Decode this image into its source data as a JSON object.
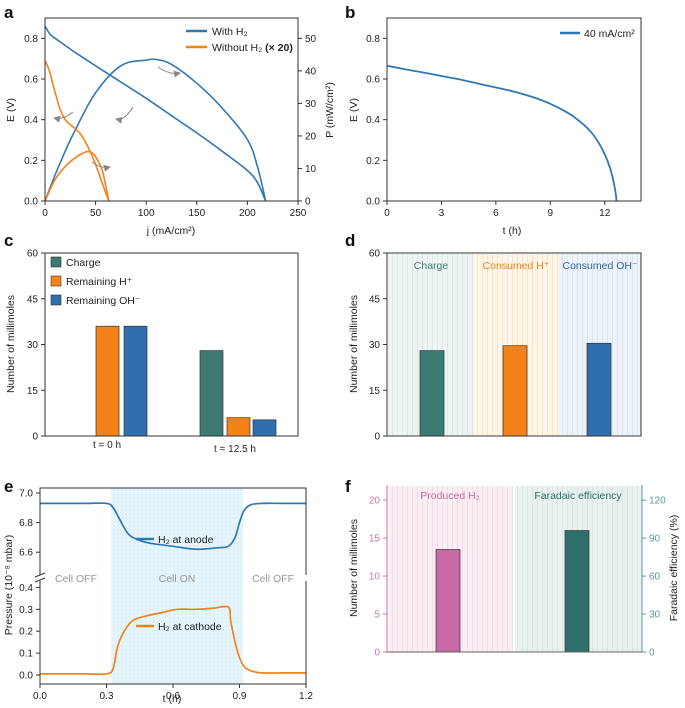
{
  "colors": {
    "blue": "#2f78b4",
    "orange": "#f58218",
    "teal": "#3c7a72",
    "blue_bar": "#2f6fae",
    "pink": "#c76aa3",
    "dark_teal": "#2f6f6a",
    "axis": "#333333",
    "pink_axis": "#c77aa8",
    "teal_axis": "#5a9a9a",
    "light_blue_band": "#e3f4fb",
    "arrow_gray": "#888888"
  },
  "chart_data": [
    {
      "panel": "a",
      "type": "line",
      "xlabel": "j (mA/cm²)",
      "ylabel_left": "E (V)",
      "ylabel_right": "P (mW/cm²)",
      "xlim": [
        0,
        250
      ],
      "ylim_left": [
        0,
        0.9
      ],
      "ylim_right": [
        0,
        56.25
      ],
      "xticks": [
        "0",
        "50",
        "100",
        "150",
        "200",
        "250"
      ],
      "yticks_left": [
        "0.0",
        "0.2",
        "0.4",
        "0.6",
        "0.8"
      ],
      "yticks_right": [
        "0",
        "10",
        "20",
        "30",
        "40",
        "50"
      ],
      "legend": [
        {
          "label": "With H₂",
          "color": "blue"
        },
        {
          "label": "Without H₂",
          "suffix": "(× 20)",
          "color": "orange"
        }
      ],
      "series": [
        {
          "name": "With H₂ – E",
          "axis": "left",
          "color": "blue",
          "x": [
            0,
            5,
            10,
            20,
            30,
            50,
            75,
            100,
            125,
            150,
            175,
            200,
            210,
            218
          ],
          "y": [
            0.86,
            0.82,
            0.8,
            0.765,
            0.73,
            0.665,
            0.585,
            0.505,
            0.42,
            0.335,
            0.245,
            0.15,
            0.09,
            0.0
          ]
        },
        {
          "name": "With H₂ – P",
          "axis": "right",
          "color": "blue",
          "x": [
            0,
            10,
            20,
            30,
            50,
            75,
            100,
            110,
            125,
            150,
            175,
            200,
            210,
            218
          ],
          "y": [
            0,
            8.0,
            15.3,
            21.9,
            33.3,
            41.6,
            43.3,
            43.5,
            42.0,
            36.2,
            28.6,
            18.9,
            10.5,
            0
          ]
        },
        {
          "name": "Without H₂ – E",
          "axis": "left",
          "color": "orange",
          "x": [
            0,
            2,
            5,
            8,
            12,
            15,
            20,
            25,
            30,
            35,
            40,
            45,
            50,
            55,
            60,
            63
          ],
          "y": [
            0.69,
            0.67,
            0.63,
            0.57,
            0.5,
            0.45,
            0.4,
            0.375,
            0.355,
            0.33,
            0.29,
            0.24,
            0.18,
            0.11,
            0.04,
            0.0
          ]
        },
        {
          "name": "Without H₂ – P",
          "axis": "right",
          "color": "orange",
          "x": [
            0,
            10,
            20,
            30,
            38,
            42,
            47,
            52,
            57,
            63
          ],
          "y": [
            0,
            6.6,
            10.6,
            13.3,
            14.8,
            15.2,
            14.7,
            12.6,
            9.0,
            0
          ]
        }
      ],
      "annotations": [
        "arrow from max P (With H₂) to right axis",
        "arrow from With H₂ E curve to left axis",
        "arrow from Without H₂ E curve to left axis",
        "arrow from Without H₂ P curve to right axis"
      ]
    },
    {
      "panel": "b",
      "type": "line",
      "xlabel": "t (h)",
      "ylabel": "E (V)",
      "xlim": [
        0,
        14
      ],
      "ylim": [
        0,
        0.9
      ],
      "xticks": [
        "0",
        "3",
        "6",
        "9",
        "12"
      ],
      "yticks": [
        "0.0",
        "0.2",
        "0.4",
        "0.6",
        "0.8"
      ],
      "legend": [
        {
          "label": "40 mA/cm²",
          "color": "blue"
        }
      ],
      "series": [
        {
          "name": "40 mA/cm²",
          "color": "blue",
          "x": [
            0,
            1,
            2,
            3,
            4,
            5,
            6,
            7,
            8,
            9,
            10,
            10.5,
            11,
            11.5,
            12,
            12.3,
            12.5,
            12.6,
            12.65
          ],
          "y": [
            0.665,
            0.648,
            0.632,
            0.615,
            0.598,
            0.578,
            0.558,
            0.538,
            0.512,
            0.478,
            0.432,
            0.4,
            0.362,
            0.31,
            0.23,
            0.16,
            0.09,
            0.04,
            0.0
          ]
        }
      ]
    },
    {
      "panel": "c",
      "type": "bar",
      "ylabel": "Number of millimoles",
      "ylim": [
        0,
        60
      ],
      "yticks": [
        "0",
        "15",
        "30",
        "45",
        "60"
      ],
      "categories": [
        "t = 0 h",
        "t = 12.5 h"
      ],
      "series": [
        {
          "name": "Charge",
          "color": "teal",
          "values": [
            0,
            28
          ]
        },
        {
          "name": "Remaining H⁺",
          "color": "orange",
          "values": [
            36,
            6
          ]
        },
        {
          "name": "Remaining OH⁻",
          "color": "blue_bar",
          "values": [
            36,
            5.3
          ]
        }
      ]
    },
    {
      "panel": "d",
      "type": "bar",
      "ylabel": "Number of millimoles",
      "ylim": [
        0,
        60
      ],
      "yticks": [
        "0",
        "15",
        "30",
        "45",
        "60"
      ],
      "categories": [
        "Charge",
        "Consumed H⁺",
        "Consumed OH⁻"
      ],
      "values": [
        28,
        29.6,
        30.4
      ],
      "bar_colors": [
        "teal",
        "orange",
        "blue_bar"
      ],
      "header_colors": [
        "#3d7f7a",
        "#e9861f",
        "#31679d"
      ]
    },
    {
      "panel": "e",
      "type": "line",
      "xlabel": "t (h)",
      "ylabel": "Pressure (10⁻⁸ mbar)",
      "xlim": [
        0,
        1.2
      ],
      "xticks": [
        "0.0",
        "0.3",
        "0.6",
        "0.9",
        "1.2"
      ],
      "ylim_upper": [
        6.5,
        7.0
      ],
      "yticks_upper": [
        "6.6",
        "6.8",
        "7.0"
      ],
      "ylim_lower": [
        -0.05,
        0.42
      ],
      "yticks_lower": [
        "0.0",
        "0.1",
        "0.2",
        "0.3",
        "0.4"
      ],
      "regions": [
        {
          "label": "Cell OFF",
          "from": 0,
          "to": 0.32
        },
        {
          "label": "Cell ON",
          "from": 0.32,
          "to": 0.92
        },
        {
          "label": "Cell OFF",
          "from": 0.92,
          "to": 1.2
        }
      ],
      "series": [
        {
          "name": "H₂ at anode",
          "color": "blue",
          "x": [
            0,
            0.1,
            0.2,
            0.3,
            0.33,
            0.36,
            0.4,
            0.45,
            0.5,
            0.6,
            0.7,
            0.8,
            0.85,
            0.88,
            0.9,
            0.92,
            0.95,
            1.0,
            1.1,
            1.2
          ],
          "y": [
            6.93,
            6.93,
            6.93,
            6.93,
            6.9,
            6.82,
            6.72,
            6.68,
            6.66,
            6.64,
            6.62,
            6.63,
            6.64,
            6.7,
            6.8,
            6.88,
            6.92,
            6.93,
            6.93,
            6.93
          ]
        },
        {
          "name": "H₂ at cathode",
          "color": "orange",
          "x": [
            0,
            0.1,
            0.2,
            0.3,
            0.33,
            0.35,
            0.38,
            0.42,
            0.48,
            0.55,
            0.62,
            0.7,
            0.78,
            0.85,
            0.86,
            0.88,
            0.9,
            0.92,
            0.95,
            1.0,
            1.1,
            1.2
          ],
          "y": [
            0.005,
            0.005,
            0.005,
            0.005,
            0.03,
            0.13,
            0.2,
            0.25,
            0.27,
            0.285,
            0.3,
            0.3,
            0.305,
            0.31,
            0.25,
            0.15,
            0.08,
            0.04,
            0.02,
            0.01,
            0.01,
            0.01
          ]
        }
      ]
    },
    {
      "panel": "f",
      "type": "bar",
      "ylabel_left": "Number of millimoles",
      "ylabel_right": "Faradaic efficiency (%)",
      "ylim_left": [
        0,
        22
      ],
      "ylim_right": [
        0,
        132
      ],
      "yticks_left": [
        "0",
        "5",
        "10",
        "15",
        "20"
      ],
      "yticks_right": [
        "0",
        "30",
        "60",
        "90",
        "120"
      ],
      "categories": [
        "Produced H₂",
        "Faradaic efficiency"
      ],
      "values": [
        13.5,
        96
      ],
      "value_axis": [
        "left",
        "right"
      ],
      "bar_colors": [
        "pink",
        "dark_teal"
      ]
    }
  ],
  "panel_labels": [
    "a",
    "b",
    "c",
    "d",
    "e",
    "f"
  ],
  "text": {
    "a_xlabel": "j (mA/cm²)",
    "a_ylabel": "E (V)",
    "a_ylabel2": "P (mW/cm²)",
    "a_leg1": "With H₂",
    "a_leg2": "Without H₂",
    "a_leg2b": "(× 20)",
    "b_xlabel": "t (h)",
    "b_ylabel": "E (V)",
    "b_leg": "40 mA/cm²",
    "c_ylabel": "Number of millimoles",
    "c_leg1": "Charge",
    "c_leg2": "Remaining H⁺",
    "c_leg3": "Remaining OH⁻",
    "c_cat1": "t = 0 h",
    "c_cat2": "t = 12.5 h",
    "d_ylabel": "Number of millimoles",
    "d_h1": "Charge",
    "d_h2": "Consumed H⁺",
    "d_h3": "Consumed OH⁻",
    "e_xlabel": "t (h)",
    "e_ylabel": "Pressure (10⁻⁸ mbar)",
    "e_leg1": "H₂ at anode",
    "e_leg2": "H₂ at cathode",
    "e_r1": "Cell OFF",
    "e_r2": "Cell ON",
    "e_r3": "Cell OFF",
    "f_ylabel": "Number of millimoles",
    "f_ylabel2": "Faradaic efficiency (%)",
    "f_h1": "Produced H₂",
    "f_h2": "Faradaic efficiency"
  }
}
